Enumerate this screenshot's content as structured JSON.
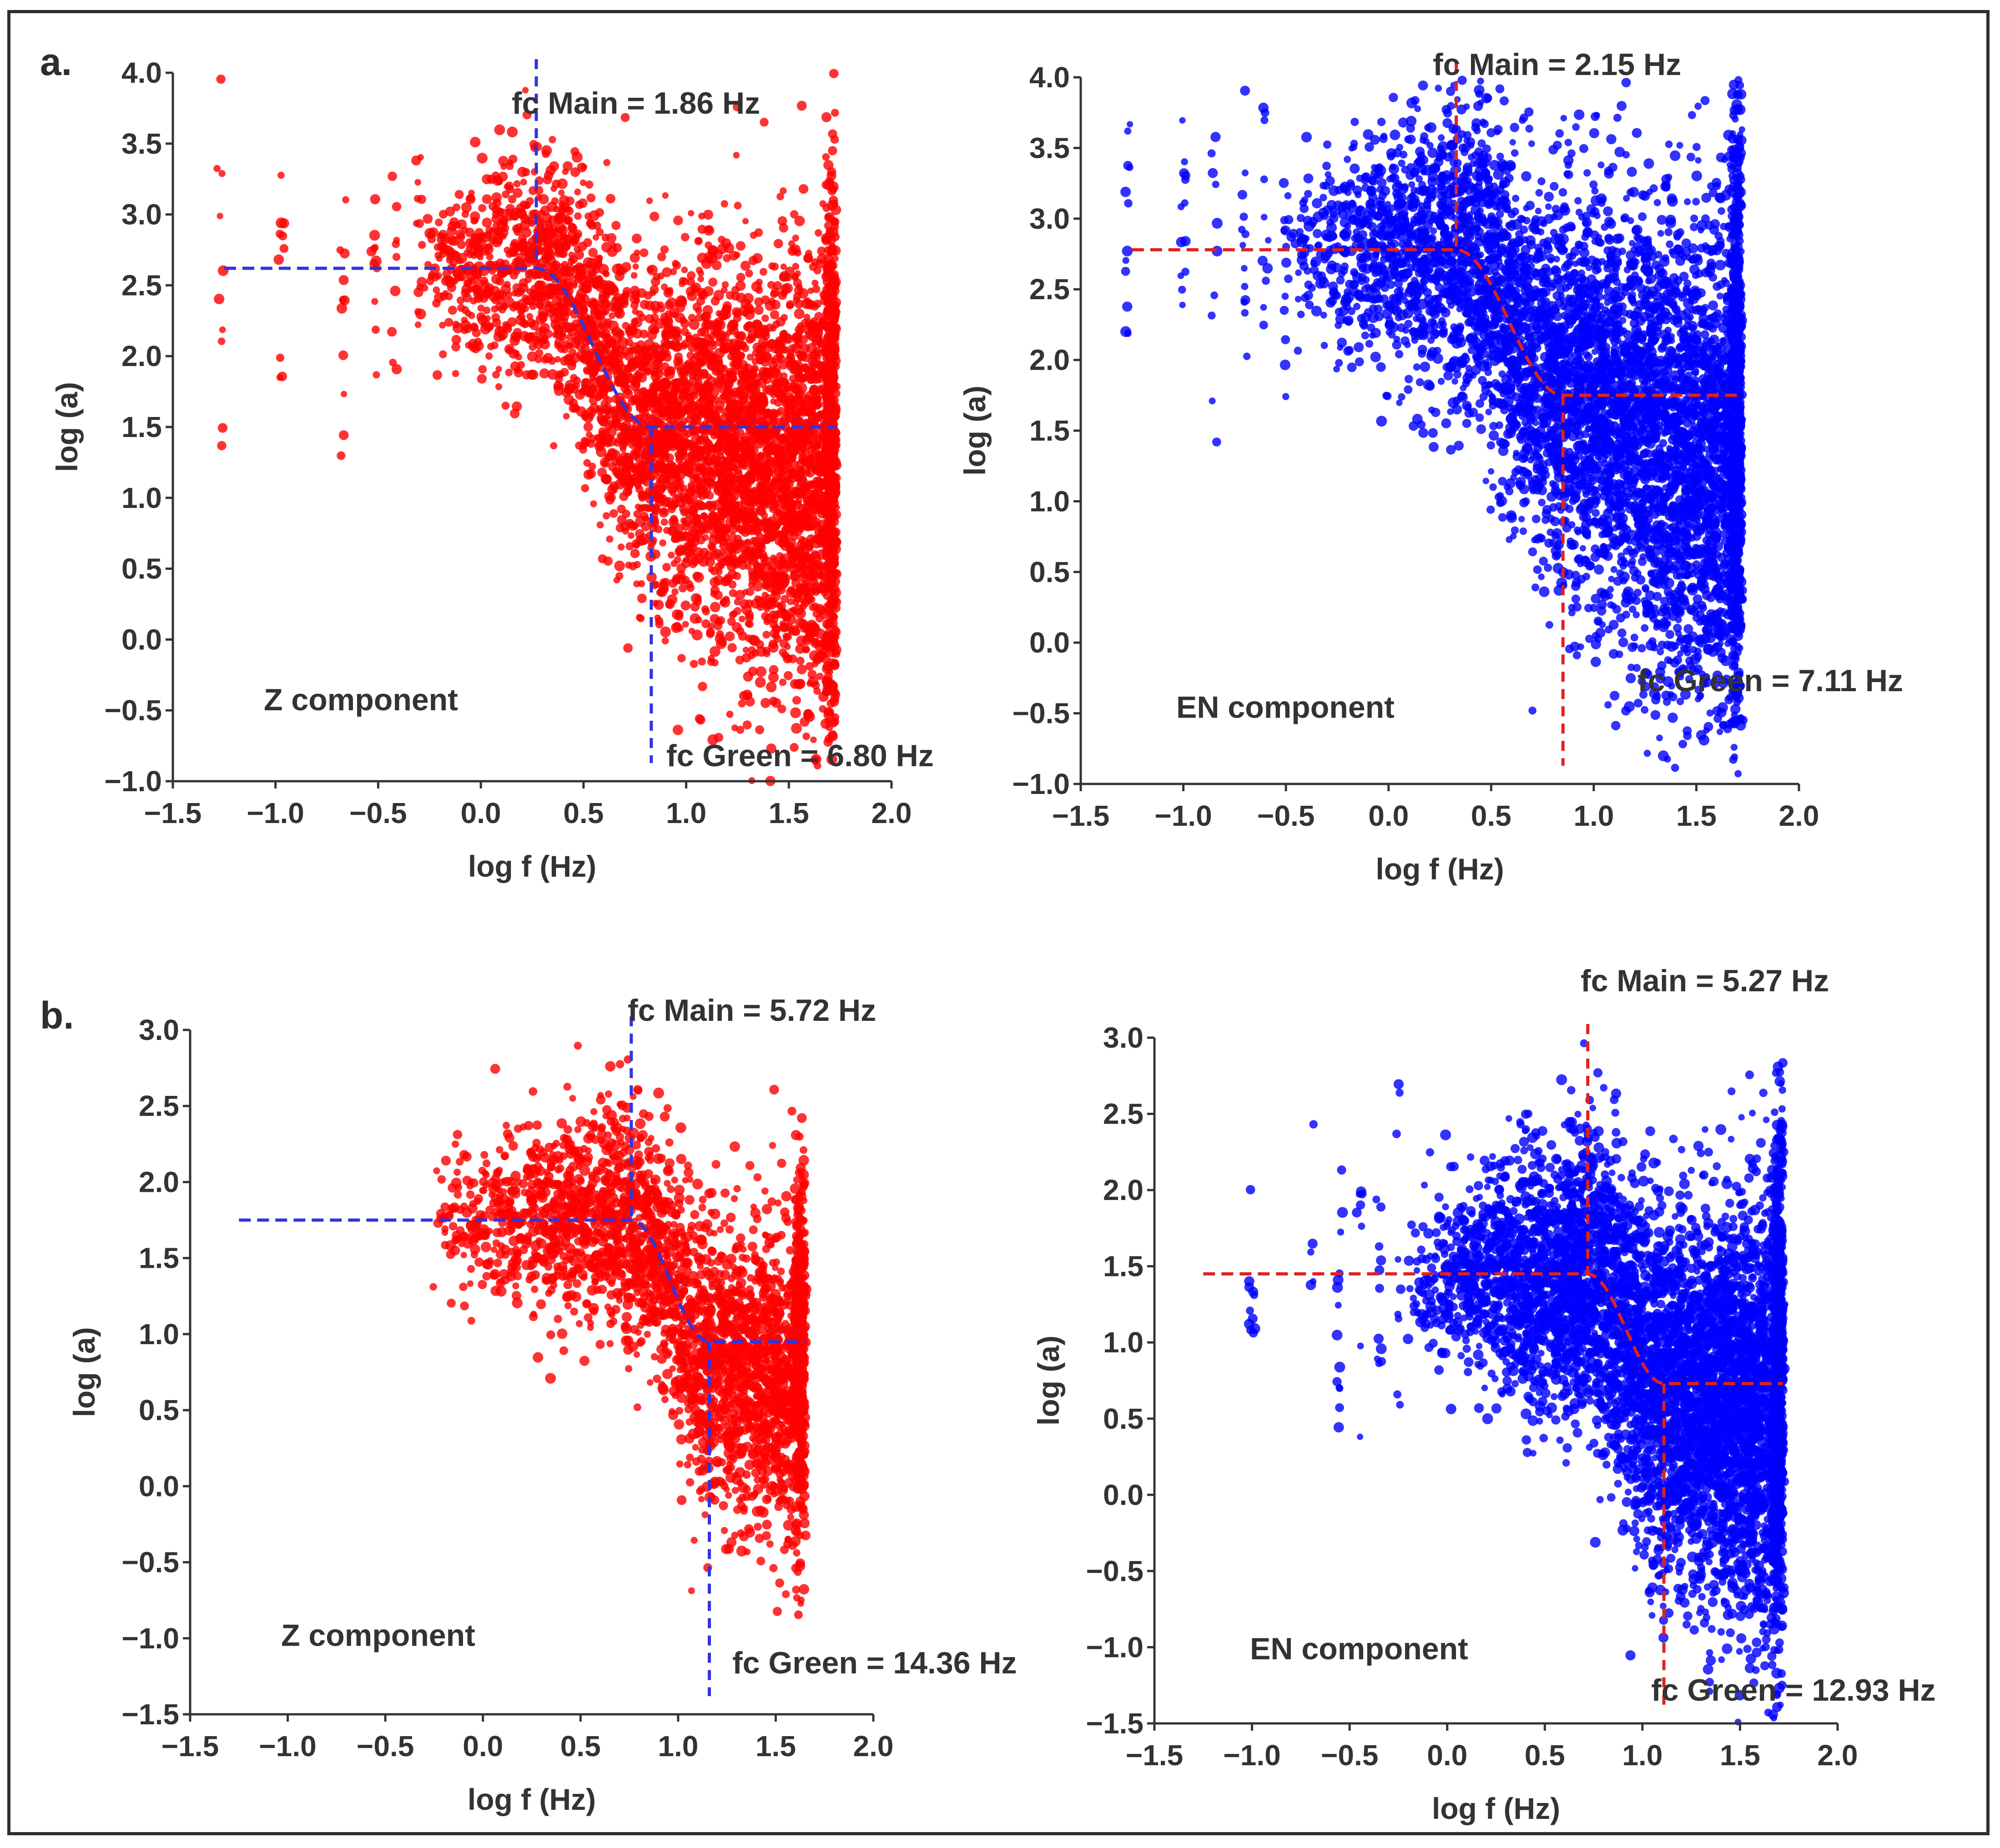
{
  "figure": {
    "panel_labels": [
      "a.",
      "b."
    ]
  },
  "chart_data": [
    {
      "type": "scatter",
      "panel": "a.",
      "component_label": "Z component",
      "xlabel": "log f (Hz)",
      "ylabel": "log (a)",
      "xlim": [
        -1.5,
        2.0
      ],
      "ylim": [
        -1.0,
        4.0
      ],
      "xticks": [
        "−1.5",
        "−1.0",
        "−0.5",
        "0.0",
        "0.5",
        "1.0",
        "1.5",
        "2.0"
      ],
      "yticks": [
        "−1.0",
        "−0.5",
        "0.0",
        "0.5",
        "1.0",
        "1.5",
        "2.0",
        "2.5",
        "3.0",
        "3.5",
        "4.0"
      ],
      "point_color": "#ff0000",
      "fit_color": "#3333dd",
      "fc_main": {
        "label": "fc Main = 1.86 Hz",
        "log_f": 0.27
      },
      "fc_green": {
        "label": "fc Green = 6.80 Hz",
        "log_f": 0.83
      },
      "plateau": 2.62,
      "tail": 1.5,
      "scatter": {
        "xmin": -0.3,
        "xmax": 1.73,
        "center_end": 1.35,
        "spread_lo": 0.25,
        "spread_hi": 0.85,
        "n": 4200,
        "seed": 11
      },
      "sparse_columns": [
        -1.27,
        -0.97,
        -0.67,
        -0.52,
        -0.42,
        -0.3
      ],
      "grid": false,
      "legend": "none"
    },
    {
      "type": "scatter",
      "panel": "a.",
      "component_label": "EN component",
      "xlabel": "log f (Hz)",
      "ylabel": "log (a)",
      "xlim": [
        -1.5,
        2.0
      ],
      "ylim": [
        -1.0,
        4.0
      ],
      "xticks": [
        "−1.5",
        "−1.0",
        "−0.5",
        "0.0",
        "0.5",
        "1.0",
        "1.5",
        "2.0"
      ],
      "yticks": [
        "−1.0",
        "−0.5",
        "0.0",
        "0.5",
        "1.0",
        "1.5",
        "2.0",
        "2.5",
        "3.0",
        "3.5",
        "4.0"
      ],
      "point_color": "#0000ff",
      "fit_color": "#dd2222",
      "fc_main": {
        "label": "fc Main = 2.15 Hz",
        "log_f": 0.33
      },
      "fc_green": {
        "label": "fc Green = 7.11 Hz",
        "log_f": 0.85
      },
      "plateau": 2.78,
      "tail": 1.75,
      "scatter": {
        "xmin": -0.5,
        "xmax": 1.72,
        "center_end": 1.5,
        "spread_lo": 0.3,
        "spread_hi": 0.95,
        "n": 5200,
        "seed": 23
      },
      "sparse_columns": [
        -1.27,
        -1.0,
        -0.85,
        -0.7,
        -0.6,
        -0.5
      ],
      "grid": false,
      "legend": "none"
    },
    {
      "type": "scatter",
      "panel": "b.",
      "component_label": "Z component",
      "xlabel": "log f (Hz)",
      "ylabel": "log (a)",
      "xlim": [
        -1.5,
        2.0
      ],
      "ylim": [
        -1.5,
        3.0
      ],
      "xticks": [
        "−1.5",
        "−1.0",
        "−0.5",
        "0.0",
        "0.5",
        "1.0",
        "1.5",
        "2.0"
      ],
      "yticks": [
        "−1.5",
        "−1.0",
        "−0.5",
        "0.0",
        "0.5",
        "1.0",
        "1.5",
        "2.0",
        "2.5",
        "3.0"
      ],
      "point_color": "#ff0000",
      "fit_color": "#3333dd",
      "fc_main": {
        "label": "fc Main = 5.72 Hz",
        "log_f": 0.76
      },
      "fc_green": {
        "label": "fc Green = 14.36 Hz",
        "log_f": 1.16
      },
      "plateau": 1.75,
      "tail": 0.95,
      "scatter": {
        "xmin": -0.27,
        "xmax": 1.65,
        "center_end": 0.8,
        "spread_lo": 0.2,
        "spread_hi": 0.55,
        "n": 2600,
        "seed": 37
      },
      "sparse_columns": [],
      "grid": false,
      "legend": "none"
    },
    {
      "type": "scatter",
      "panel": "b.",
      "component_label": "EN component",
      "xlabel": "log f (Hz)",
      "ylabel": "log (a)",
      "xlim": [
        -1.5,
        2.0
      ],
      "ylim": [
        -1.5,
        3.0
      ],
      "xticks": [
        "−1.5",
        "−1.0",
        "−0.5",
        "0.0",
        "0.5",
        "1.0",
        "1.5",
        "2.0"
      ],
      "yticks": [
        "−1.5",
        "−1.0",
        "−0.5",
        "0.0",
        "0.5",
        "1.0",
        "1.5",
        "2.0",
        "2.5",
        "3.0"
      ],
      "point_color": "#0000ff",
      "fit_color": "#dd2222",
      "fc_main": {
        "label": "fc Main = 5.27 Hz",
        "log_f": 0.72
      },
      "fc_green": {
        "label": "fc Green = 12.93 Hz",
        "log_f": 1.11
      },
      "plateau": 1.45,
      "tail": 0.73,
      "scatter": {
        "xmin": -0.2,
        "xmax": 1.72,
        "center_end": 0.55,
        "spread_lo": 0.25,
        "spread_hi": 0.75,
        "n": 5200,
        "seed": 53
      },
      "sparse_columns": [
        -1.0,
        -0.7,
        -0.55,
        -0.45,
        -0.35,
        -0.25
      ],
      "grid": false,
      "legend": "none"
    }
  ]
}
